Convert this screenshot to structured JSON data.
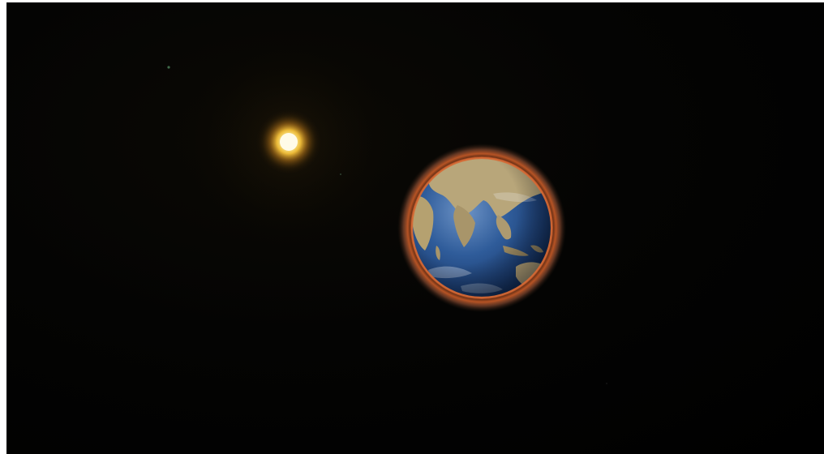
{
  "scene": {
    "background_color": "#000000",
    "sun": {
      "glow_color": "#f6c23a",
      "core_color": "#fff6c8"
    },
    "planet": {
      "name_icon": "earth-icon",
      "ocean_color": "#2f5c9a",
      "land_color": "#b8a67a",
      "atmosphere_color": "#d6612a"
    },
    "stars": [
      "star-icon",
      "star-icon",
      "star-icon"
    ]
  }
}
